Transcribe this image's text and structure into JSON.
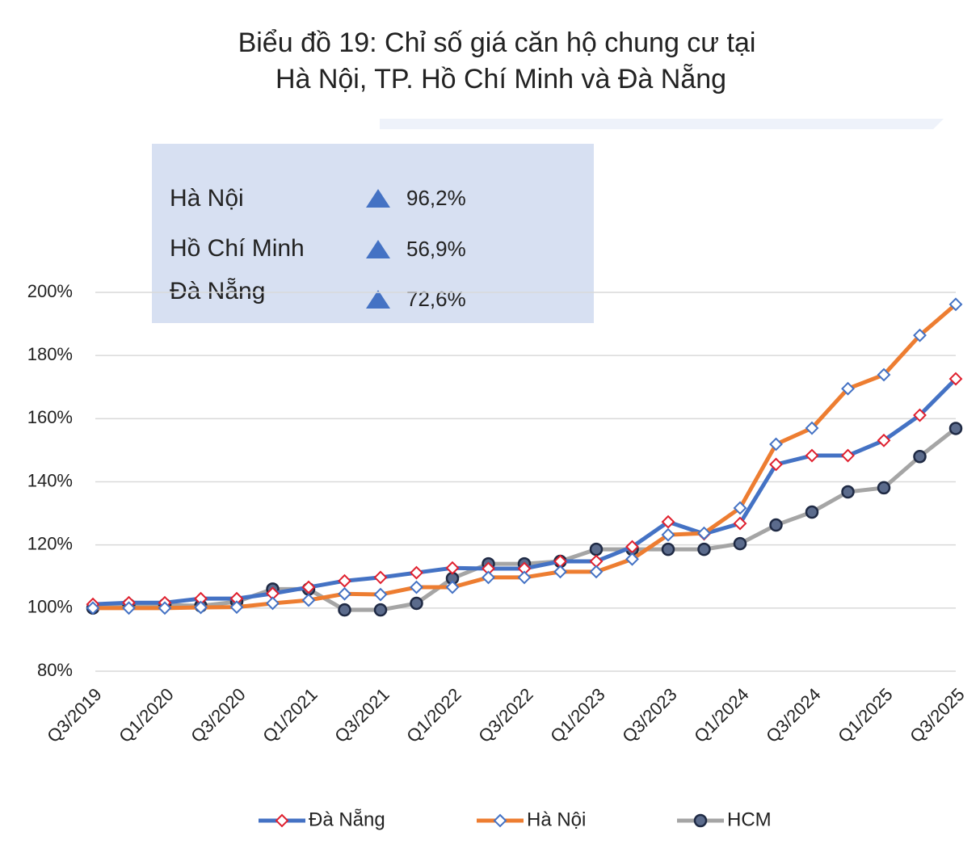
{
  "chart_data": {
    "type": "line",
    "title": [
      "Biểu đồ 19: Chỉ số giá căn hộ chung cư tại",
      "Hà Nội, TP. Hồ Chí Minh và Đà Nẵng"
    ],
    "summary": [
      {
        "label": "Hà Nội",
        "value": "96,2%"
      },
      {
        "label": "Hồ Chí Minh",
        "value": "56,9%"
      },
      {
        "label": "Đà Nẵng",
        "value": "72,6%"
      }
    ],
    "categories": [
      "Q3/2019",
      null,
      "Q1/2020",
      null,
      "Q3/2020",
      null,
      "Q1/2021",
      null,
      "Q3/2021",
      null,
      "Q1/2022",
      null,
      "Q3/2022",
      null,
      "Q1/2023",
      null,
      "Q3/2023",
      null,
      "Q1/2024",
      null,
      "Q3/2024",
      null,
      "Q1/2025",
      null,
      "Q3/2025"
    ],
    "series": [
      {
        "name": "Đà Nẵng",
        "color": "#4472c4",
        "marker": "diamond",
        "marker_color": "#e0202e",
        "marker_fill": "#ffffff",
        "values": [
          101.2,
          101.7,
          101.7,
          103,
          103,
          104.6,
          106.6,
          108.6,
          109.7,
          111.2,
          112.7,
          112.5,
          112.5,
          114.8,
          114.8,
          119.4,
          127.3,
          123.5,
          126.8,
          145.5,
          148.3,
          148.3,
          153.1,
          161.1,
          172.6
        ]
      },
      {
        "name": "Hà Nội",
        "color": "#ed7d31",
        "marker": "diamond",
        "marker_color": "#4472c4",
        "marker_fill": "#ffffff",
        "values": [
          100,
          100,
          100,
          100.2,
          100.3,
          101.5,
          102.5,
          104.5,
          104.3,
          106.6,
          106.6,
          109.7,
          109.7,
          111.5,
          111.5,
          115.5,
          123.2,
          123.7,
          131.7,
          151.9,
          157,
          169.5,
          173.9,
          186.4,
          196.2
        ]
      },
      {
        "name": "HCM",
        "color": "#a5a5a5",
        "marker": "circle",
        "marker_color": "#1f2a44",
        "marker_fill": "#5b6b8c",
        "values": [
          100,
          101,
          101,
          100.7,
          102,
          106,
          106,
          99.4,
          99.4,
          101.5,
          109.4,
          114,
          114,
          114.8,
          118.6,
          118.6,
          118.6,
          118.6,
          120.4,
          126.3,
          130.4,
          136.8,
          138.1,
          148,
          156.9
        ]
      }
    ],
    "ylim": [
      80,
      200
    ],
    "yticks": [
      {
        "value": 80,
        "label": "80%"
      },
      {
        "value": 100,
        "label": "100%"
      },
      {
        "value": 120,
        "label": "120%"
      },
      {
        "value": 140,
        "label": "140%"
      },
      {
        "value": 160,
        "label": "160%"
      },
      {
        "value": 180,
        "label": "180%"
      },
      {
        "value": 200,
        "label": "200%"
      }
    ],
    "grid": true,
    "legend": "bottom"
  }
}
